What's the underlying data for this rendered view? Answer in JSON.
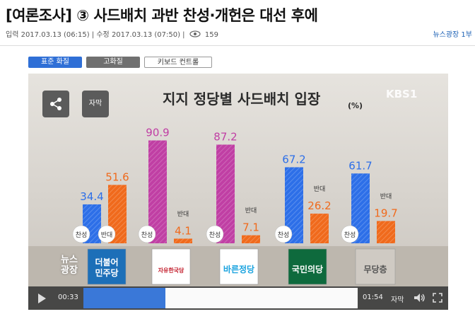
{
  "article": {
    "title": "[여론조사] ③ 사드배치 과반 찬성·개헌은 대선 후에",
    "meta_input": "입력 2017.03.13 (06:15) | 수정 2017.03.13 (07:50) |",
    "views": "159",
    "program": "뉴스광장 1부"
  },
  "quality_buttons": {
    "standard": "표준 화질",
    "hd": "고화질",
    "keyboard": "키보드 컨트롤"
  },
  "video": {
    "share_label": "share-icon",
    "subtitle_button": "자막",
    "broadcaster": "KBS1",
    "watermark_line1": "뉴스",
    "watermark_line2": "광장",
    "time_current": "00:33",
    "time_total": "01:54",
    "subtitle_ctrl": "자막",
    "progress": 0.3
  },
  "colors": {
    "support": "#2d6fe8",
    "oppose": "#f06a1c",
    "party_purple": "#c03fa4"
  },
  "chart_data": {
    "type": "bar",
    "title": "지지 정당별 사드배치 입장",
    "unit": "(%)",
    "categories": [
      "더불어민주당",
      "자유한국당",
      "바른정당",
      "국민의당",
      "무당층"
    ],
    "category_labels": [
      "더불어\n민주당",
      "자유한국당",
      "바른정당",
      "국민의당",
      "무당층"
    ],
    "series": [
      {
        "name": "찬성",
        "values": [
          34.4,
          90.9,
          87.2,
          67.2,
          61.7
        ],
        "colors": [
          "#2d6fe8",
          "#c03fa4",
          "#c03fa4",
          "#2d6fe8",
          "#2d6fe8"
        ]
      },
      {
        "name": "반대",
        "values": [
          51.6,
          4.1,
          7.1,
          26.2,
          19.7
        ],
        "colors": [
          "#f06a1c",
          "#f06a1c",
          "#f06a1c",
          "#f06a1c",
          "#f06a1c"
        ]
      }
    ],
    "value_labels_support": [
      "34.4",
      "90.9",
      "87.2",
      "67.2",
      "61.7"
    ],
    "value_labels_oppose": [
      "51.6",
      "4.1",
      "7.1",
      "26.2",
      "19.7"
    ],
    "label_support": "찬성",
    "label_oppose": "반대",
    "ylim": [
      0,
      100
    ]
  }
}
